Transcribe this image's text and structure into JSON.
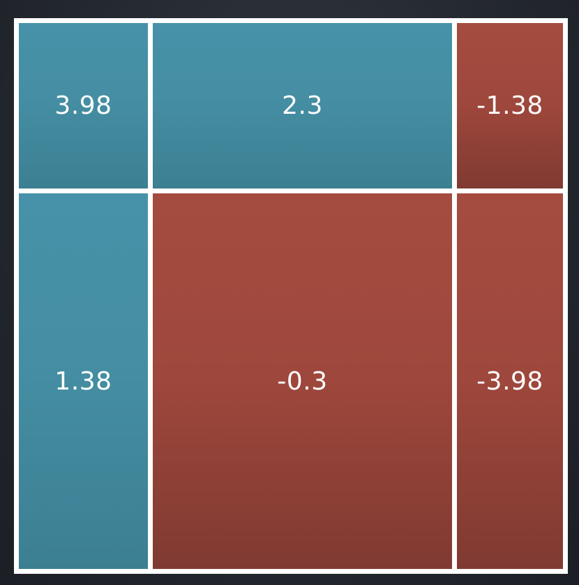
{
  "colors": {
    "positive": "#4792a8",
    "negative": "#a54c40",
    "border": "#ffffff",
    "background": "#23272e"
  },
  "cells": [
    {
      "row": 1,
      "col": 1,
      "value": "3.98",
      "sign": "positive"
    },
    {
      "row": 1,
      "col": 2,
      "value": "2.3",
      "sign": "positive"
    },
    {
      "row": 1,
      "col": 3,
      "value": "-1.38",
      "sign": "negative"
    },
    {
      "row": 2,
      "col": 1,
      "value": "1.38",
      "sign": "positive"
    },
    {
      "row": 2,
      "col": 2,
      "value": "-0.3",
      "sign": "negative"
    },
    {
      "row": 2,
      "col": 3,
      "value": "-3.98",
      "sign": "negative"
    }
  ]
}
